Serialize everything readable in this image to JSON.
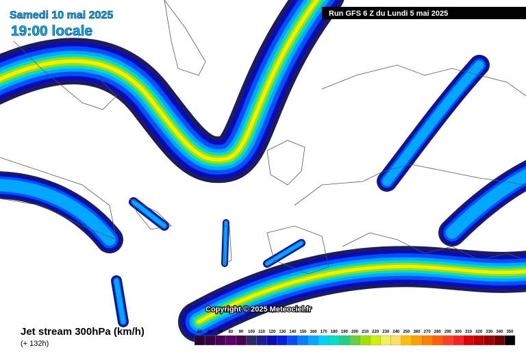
{
  "header": {
    "date": "Samedi 10 mai 2025",
    "time": "19:00 locale",
    "run": "Run GFS 6 Z du Lundi 5 mai 2025"
  },
  "copyright": "Copyright © 2025 Meteociel.fr",
  "legend": {
    "title": "Jet stream 300hPa (km/h)",
    "lead": "(+ 132h)",
    "scale": [
      {
        "label": "50",
        "color": "#2a0030"
      },
      {
        "label": "60",
        "color": "#3a0044"
      },
      {
        "label": "70",
        "color": "#4c0058"
      },
      {
        "label": "80",
        "color": "#5e006a"
      },
      {
        "label": "90",
        "color": "#4a0052"
      },
      {
        "label": "100",
        "color": "#2c2c5c"
      },
      {
        "label": "110",
        "color": "#1c1c8c"
      },
      {
        "label": "120",
        "color": "#0a0ab8"
      },
      {
        "label": "130",
        "color": "#0020e0"
      },
      {
        "label": "140",
        "color": "#0050ff"
      },
      {
        "label": "150",
        "color": "#0080ff"
      },
      {
        "label": "160",
        "color": "#00a8ff"
      },
      {
        "label": "170",
        "color": "#00d0ff"
      },
      {
        "label": "180",
        "color": "#00e0c8"
      },
      {
        "label": "190",
        "color": "#20d088"
      },
      {
        "label": "200",
        "color": "#60d040"
      },
      {
        "label": "210",
        "color": "#a0e000"
      },
      {
        "label": "220",
        "color": "#d0f000"
      },
      {
        "label": "230",
        "color": "#f0f060"
      },
      {
        "label": "240",
        "color": "#ffe060"
      },
      {
        "label": "250",
        "color": "#ffc000"
      },
      {
        "label": "260",
        "color": "#ffa000"
      },
      {
        "label": "270",
        "color": "#ff8000"
      },
      {
        "label": "280",
        "color": "#ff6000"
      },
      {
        "label": "290",
        "color": "#ff4020"
      },
      {
        "label": "300",
        "color": "#ff2020"
      },
      {
        "label": "310",
        "color": "#e00000"
      },
      {
        "label": "320",
        "color": "#c00000"
      },
      {
        "label": "330",
        "color": "#a00000"
      },
      {
        "label": "340",
        "color": "#700000"
      },
      {
        "label": "350",
        "color": "#000000"
      }
    ]
  }
}
